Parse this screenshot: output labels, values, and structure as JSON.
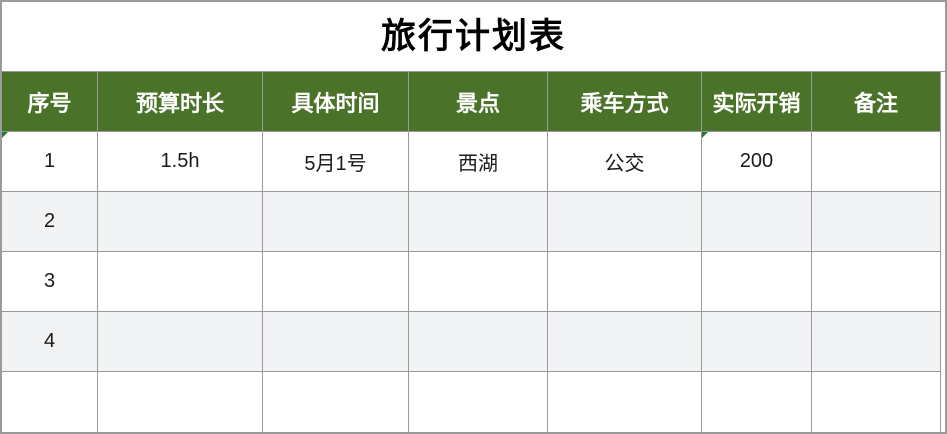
{
  "title": "旅行计划表",
  "colors": {
    "header_bg": "#4A7229",
    "header_text": "#FFFFFF",
    "stripe_bg": "#F2F3F5",
    "grid_line": "#999999",
    "outer_border": "#9B9B9B",
    "error_indicator": "#1E7C30"
  },
  "table": {
    "columns": [
      {
        "label": "序号"
      },
      {
        "label": "预算时长"
      },
      {
        "label": "具体时间"
      },
      {
        "label": "景点"
      },
      {
        "label": "乘车方式"
      },
      {
        "label": "实际开销"
      },
      {
        "label": "备注"
      }
    ],
    "rows": [
      {
        "cells": [
          "1",
          "1.5h",
          "5月1号",
          "西湖",
          "公交",
          "200",
          ""
        ]
      },
      {
        "cells": [
          "2",
          "",
          "",
          "",
          "",
          "",
          ""
        ]
      },
      {
        "cells": [
          "3",
          "",
          "",
          "",
          "",
          "",
          ""
        ]
      },
      {
        "cells": [
          "4",
          "",
          "",
          "",
          "",
          "",
          ""
        ]
      },
      {
        "cells": [
          "",
          "",
          "",
          "",
          "",
          "",
          ""
        ]
      }
    ]
  }
}
